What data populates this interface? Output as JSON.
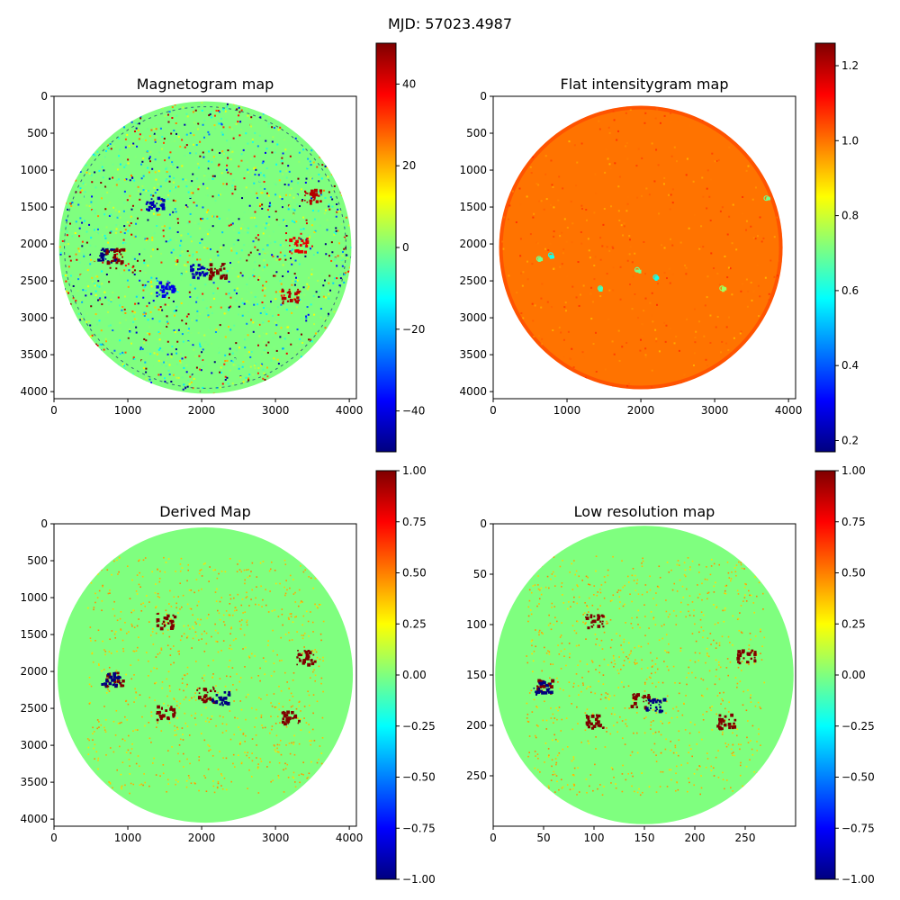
{
  "suptitle": "MJD: 57023.4987",
  "colormap": [
    "#00007f",
    "#0000ff",
    "#007fff",
    "#00ffff",
    "#7fff7f",
    "#ffff00",
    "#ff7f00",
    "#ff0000",
    "#7f0000"
  ],
  "chart_data": [
    {
      "id": "magnetogram",
      "type": "heatmap",
      "title": "Magnetogram map",
      "xlim": [
        0,
        4096
      ],
      "ylim": [
        4096,
        0
      ],
      "xticks": [
        0,
        1000,
        2000,
        3000,
        4000
      ],
      "yticks": [
        0,
        500,
        1000,
        1500,
        2000,
        2500,
        3000,
        3500,
        4000
      ],
      "disk": {
        "cx": 2048,
        "cy": 2048,
        "r": 1980
      },
      "background_value": 0,
      "colorbar": {
        "min": -50,
        "max": 50,
        "ticks": [
          -40,
          -20,
          0,
          20,
          40
        ],
        "tick_labels": [
          "−40",
          "−20",
          "0",
          "20",
          "40"
        ]
      },
      "active_regions": [
        {
          "x": 700,
          "y": 2150,
          "value": -50
        },
        {
          "x": 800,
          "y": 2150,
          "value": 50
        },
        {
          "x": 1350,
          "y": 1450,
          "value": -45
        },
        {
          "x": 1500,
          "y": 2600,
          "value": -40
        },
        {
          "x": 1950,
          "y": 2350,
          "value": -45
        },
        {
          "x": 2200,
          "y": 2350,
          "value": 50
        },
        {
          "x": 3200,
          "y": 2700,
          "value": 45
        },
        {
          "x": 3300,
          "y": 2000,
          "value": 40
        },
        {
          "x": 3500,
          "y": 1350,
          "value": 45
        }
      ]
    },
    {
      "id": "intensity",
      "type": "heatmap",
      "title": "Flat intensitygram map",
      "xlim": [
        0,
        4096
      ],
      "ylim": [
        4096,
        0
      ],
      "xticks": [
        0,
        1000,
        2000,
        3000,
        4000
      ],
      "yticks": [
        0,
        500,
        1000,
        1500,
        2000,
        2500,
        3000,
        3500,
        4000
      ],
      "disk": {
        "cx": 2000,
        "cy": 2048,
        "r": 1920
      },
      "background_value": 1.0,
      "colorbar": {
        "min": 0.17,
        "max": 1.26,
        "ticks": [
          0.2,
          0.4,
          0.6,
          0.8,
          1.0,
          1.2
        ],
        "tick_labels": [
          "0.2",
          "0.4",
          "0.6",
          "0.8",
          "1.0",
          "1.2"
        ]
      },
      "spots": [
        {
          "x": 620,
          "y": 2200,
          "value": 0.7
        },
        {
          "x": 780,
          "y": 2150,
          "value": 0.6
        },
        {
          "x": 1450,
          "y": 2600,
          "value": 0.65
        },
        {
          "x": 1950,
          "y": 2350,
          "value": 0.7
        },
        {
          "x": 2200,
          "y": 2450,
          "value": 0.6
        },
        {
          "x": 3100,
          "y": 2600,
          "value": 0.75
        },
        {
          "x": 3700,
          "y": 1380,
          "value": 0.7
        }
      ]
    },
    {
      "id": "derived",
      "type": "heatmap",
      "title": "Derived Map",
      "xlim": [
        0,
        4096
      ],
      "ylim": [
        4096,
        0
      ],
      "xticks": [
        0,
        1000,
        2000,
        3000,
        4000
      ],
      "yticks": [
        0,
        500,
        1000,
        1500,
        2000,
        2500,
        3000,
        3500,
        4000
      ],
      "disk": {
        "cx": 2048,
        "cy": 2048,
        "r": 2000
      },
      "background_value": 0,
      "colorbar": {
        "min": -1,
        "max": 1,
        "ticks": [
          -1,
          -0.75,
          -0.5,
          -0.25,
          0,
          0.25,
          0.5,
          0.75,
          1
        ],
        "tick_labels": [
          "−1.00",
          "−0.75",
          "−0.50",
          "−0.25",
          "0.00",
          "0.25",
          "0.50",
          "0.75",
          "1.00"
        ]
      },
      "active_regions": [
        {
          "x": 800,
          "y": 2100,
          "value": 1
        },
        {
          "x": 760,
          "y": 2100,
          "value": -1
        },
        {
          "x": 1500,
          "y": 1300,
          "value": 1
        },
        {
          "x": 1500,
          "y": 2550,
          "value": 1
        },
        {
          "x": 2050,
          "y": 2300,
          "value": 1
        },
        {
          "x": 2250,
          "y": 2350,
          "value": -1
        },
        {
          "x": 3200,
          "y": 2600,
          "value": 1
        },
        {
          "x": 3400,
          "y": 1800,
          "value": 1
        }
      ]
    },
    {
      "id": "lowres",
      "type": "heatmap",
      "title": "Low resolution map",
      "xlim": [
        0,
        300
      ],
      "ylim": [
        300,
        0
      ],
      "xticks": [
        0,
        50,
        100,
        150,
        200,
        250
      ],
      "yticks": [
        0,
        50,
        100,
        150,
        200,
        250
      ],
      "disk": {
        "cx": 150,
        "cy": 150,
        "r": 148
      },
      "background_value": 0,
      "colorbar": {
        "min": -1,
        "max": 1,
        "ticks": [
          -1,
          -0.75,
          -0.5,
          -0.25,
          0,
          0.25,
          0.5,
          0.75,
          1
        ],
        "tick_labels": [
          "−1.00",
          "−0.75",
          "−0.50",
          "−0.25",
          "0.00",
          "0.25",
          "0.50",
          "0.75",
          "1.00"
        ]
      },
      "active_regions": [
        {
          "x": 50,
          "y": 160,
          "value": 1
        },
        {
          "x": 48,
          "y": 162,
          "value": -1
        },
        {
          "x": 100,
          "y": 95,
          "value": 1
        },
        {
          "x": 100,
          "y": 195,
          "value": 1
        },
        {
          "x": 145,
          "y": 175,
          "value": 1
        },
        {
          "x": 160,
          "y": 178,
          "value": -1
        },
        {
          "x": 230,
          "y": 195,
          "value": 1
        },
        {
          "x": 250,
          "y": 130,
          "value": 1
        }
      ]
    }
  ]
}
